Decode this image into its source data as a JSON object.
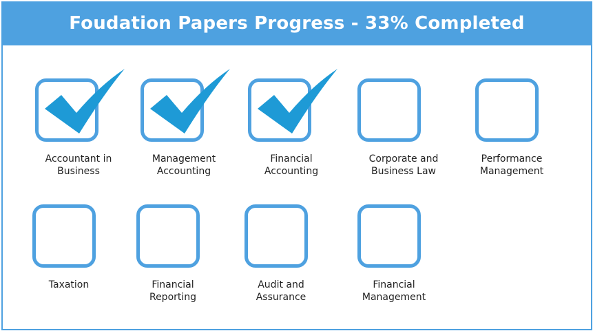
{
  "header": {
    "title": "Foudation Papers Progress - 33% Completed"
  },
  "progress_percent": 33,
  "colors": {
    "accent": "#4ea1e0",
    "check": "#1e9ad6",
    "title_text": "#ffffff"
  },
  "papers": [
    {
      "line1": "Accountant in",
      "line2": "Business",
      "completed": true
    },
    {
      "line1": "Management",
      "line2": "Accounting",
      "completed": true
    },
    {
      "line1": "Financial",
      "line2": "Accounting",
      "completed": true
    },
    {
      "line1": "Corporate and",
      "line2": "Business Law",
      "completed": false
    },
    {
      "line1": "Performance",
      "line2": "Management",
      "completed": false
    },
    {
      "line1": "Taxation",
      "line2": "",
      "completed": false
    },
    {
      "line1": "Financial",
      "line2": "Reporting",
      "completed": false
    },
    {
      "line1": "Audit and",
      "line2": "Assurance",
      "completed": false
    },
    {
      "line1": "Financial",
      "line2": "Management",
      "completed": false
    }
  ]
}
